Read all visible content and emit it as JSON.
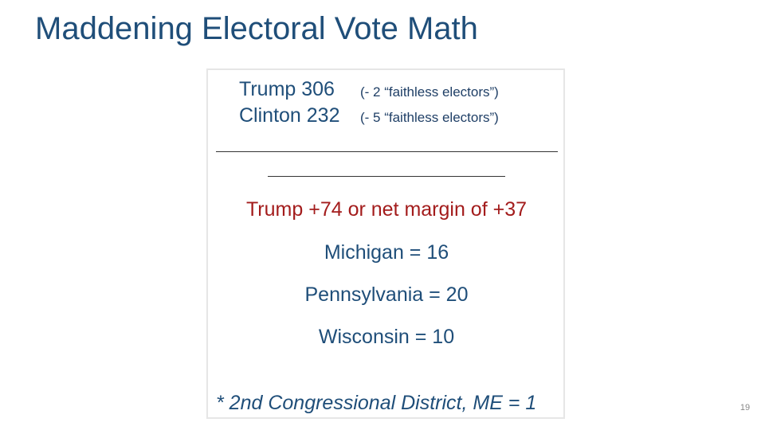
{
  "slide": {
    "title": "Maddening Electoral Vote Math",
    "page_number": "19"
  },
  "tally": {
    "trump_label": "Trump 306",
    "trump_note": "(- 2 “faithless electors”)",
    "clinton_label": "Clinton 232",
    "clinton_note": "(- 5 “faithless electors”)"
  },
  "result": {
    "text": "Trump +74 or net margin of +37"
  },
  "states": [
    {
      "text": "Michigan = 16"
    },
    {
      "text": "Pennsylvania = 20"
    },
    {
      "text": "Wisconsin = 10"
    }
  ],
  "footnote": {
    "text": "* 2nd Congressional District, ME = 1"
  },
  "colors": {
    "title": "#1f4e79",
    "body_text": "#1f4e79",
    "result_text": "#a31c1c",
    "box_border": "#e6e6e6"
  }
}
